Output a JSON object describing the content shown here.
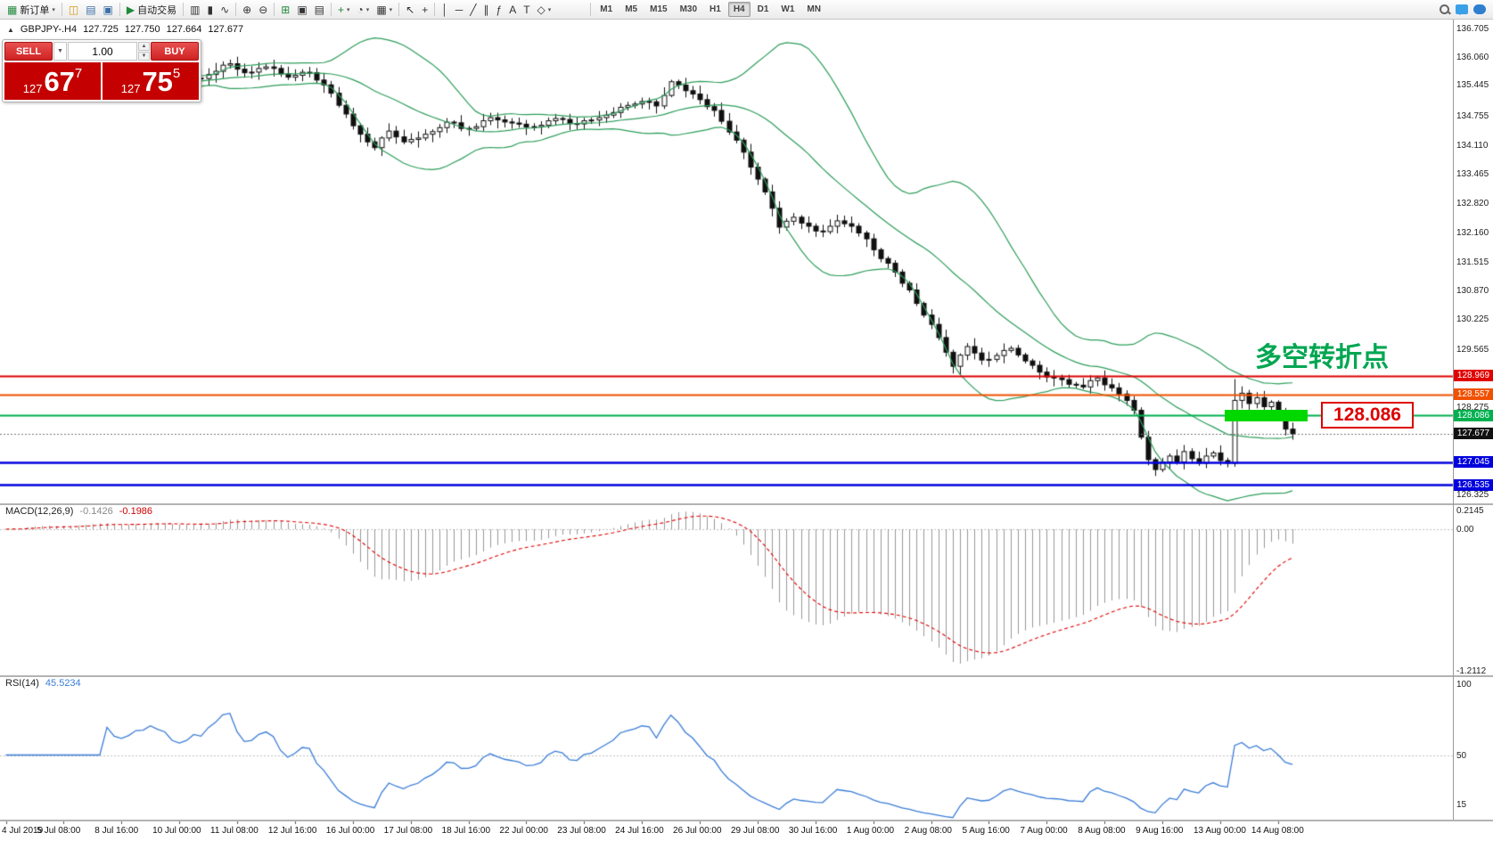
{
  "toolbar": {
    "caret_glyph": "▾",
    "groups": [
      [
        {
          "name": "new-order-button",
          "glyph": "▦",
          "color": "#1f8a3b",
          "label": "新订单",
          "caret": true
        }
      ],
      [
        {
          "name": "market-watch-icon",
          "glyph": "◫",
          "color": "#d89a16"
        },
        {
          "name": "data-window-icon",
          "glyph": "▤",
          "color": "#3a6ea5"
        },
        {
          "name": "navigator-icon",
          "glyph": "▣",
          "color": "#3a6ea5"
        }
      ],
      [
        {
          "name": "auto-trading-button",
          "glyph": "▶",
          "color": "#1f8a3b",
          "label": "自动交易"
        }
      ],
      [
        {
          "name": "bar-chart-button",
          "glyph": "▥"
        },
        {
          "name": "candlestick-chart-button",
          "glyph": "▮"
        },
        {
          "name": "line-chart-button",
          "glyph": "∿"
        }
      ],
      [
        {
          "name": "zoom-in-button",
          "glyph": "⊕"
        },
        {
          "name": "zoom-out-button",
          "glyph": "⊖"
        }
      ],
      [
        {
          "name": "tile-windows-button",
          "glyph": "⊞",
          "color": "#1f8a3b"
        },
        {
          "name": "cascade-windows-button",
          "glyph": "▣"
        },
        {
          "name": "arrange-windows-button",
          "glyph": "▤"
        }
      ],
      [
        {
          "name": "indicators-button",
          "glyph": "+",
          "color": "#1f8a3b",
          "caret": true
        },
        {
          "name": "periods-button",
          "glyph": "◔",
          "caret": true
        },
        {
          "name": "templates-button",
          "glyph": "▦",
          "caret": true
        }
      ],
      [
        {
          "name": "cursor-button",
          "glyph": "↖"
        },
        {
          "name": "crosshair-button",
          "glyph": "+"
        }
      ],
      [
        {
          "name": "vertical-line-button",
          "glyph": "│"
        },
        {
          "name": "horizontal-line-button",
          "glyph": "─"
        },
        {
          "name": "trendline-button",
          "glyph": "╱"
        },
        {
          "name": "channel-button",
          "glyph": "∥"
        },
        {
          "name": "fibonacci-button",
          "glyph": "ƒ"
        },
        {
          "name": "text-button",
          "glyph": "A"
        },
        {
          "name": "label-button",
          "glyph": "T"
        },
        {
          "name": "shapes-button",
          "glyph": "◇",
          "caret": true
        }
      ]
    ],
    "timeframes": [
      "M1",
      "M5",
      "M15",
      "M30",
      "H1",
      "H4",
      "D1",
      "W1",
      "MN"
    ],
    "active_timeframe": "H4",
    "right_icons": [
      {
        "name": "search-icon",
        "css": "search"
      },
      {
        "name": "chat-icon",
        "css": "chat"
      },
      {
        "name": "community-icon",
        "css": "chat2"
      }
    ]
  },
  "chart_header": {
    "symbol_icon": "▲",
    "symbol_period": "GBPJPY-.H4",
    "open": "127.725",
    "high": "127.750",
    "low": "127.664",
    "close": "127.677"
  },
  "trade_panel": {
    "sell_label": "SELL",
    "buy_label": "BUY",
    "volume": "1.00",
    "caret_down": "▼",
    "spinner_up": "▲",
    "spinner_down": "▼",
    "sell_price": {
      "prefix": "127",
      "big": "67",
      "sup": "7"
    },
    "buy_price": {
      "prefix": "127",
      "big": "75",
      "sup": "5"
    }
  },
  "annotation": {
    "text": "多空转折点",
    "color": "#00a651"
  },
  "callout": {
    "text": "128.086",
    "color": "#dd0000"
  },
  "highlight_bar_color": "#00d800",
  "chart_data": {
    "type": "candlestick",
    "symbol": "GBPJPY-",
    "timeframe": "H4",
    "price_axis": {
      "max": 136.705,
      "min": 126.325,
      "labels": [
        "136.705",
        "136.060",
        "135.445",
        "134.755",
        "134.110",
        "133.465",
        "132.820",
        "132.160",
        "131.515",
        "130.870",
        "130.225",
        "129.565",
        "128.275",
        "126.325"
      ]
    },
    "badges": [
      {
        "text": "128.969",
        "color": "#e00000"
      },
      {
        "text": "128.557",
        "color": "#f05000"
      },
      {
        "text": "128.086",
        "color": "#00b050"
      },
      {
        "text": "127.677",
        "color": "#111111"
      },
      {
        "text": "127.045",
        "color": "#0000dd"
      },
      {
        "text": "126.535",
        "color": "#0000dd"
      }
    ],
    "horizontal_lines": [
      {
        "price": 128.969,
        "color": "#e00000",
        "width": 2
      },
      {
        "price": 128.557,
        "color": "#f05000",
        "width": 2
      },
      {
        "price": 128.086,
        "color": "#00b050",
        "width": 2
      },
      {
        "price": 127.045,
        "color": "#0000dd",
        "width": 2.5
      },
      {
        "price": 126.535,
        "color": "#0000dd",
        "width": 2.5
      }
    ],
    "current_price": 127.677,
    "candles_per_gridline": 8,
    "time_labels": [
      "4 Jul 2019",
      "5 Jul 08:00",
      "8 Jul 16:00",
      "10 Jul 00:00",
      "11 Jul 08:00",
      "12 Jul 16:00",
      "16 Jul 00:00",
      "17 Jul 08:00",
      "18 Jul 16:00",
      "22 Jul 00:00",
      "23 Jul 08:00",
      "24 Jul 16:00",
      "26 Jul 00:00",
      "29 Jul 08:00",
      "30 Jul 16:00",
      "1 Aug 00:00",
      "2 Aug 08:00",
      "5 Aug 16:00",
      "7 Aug 00:00",
      "8 Aug 08:00",
      "9 Aug 16:00",
      "13 Aug 00:00",
      "14 Aug 08:00"
    ],
    "close_anchors": [
      [
        0,
        135.3
      ],
      [
        4,
        135.48
      ],
      [
        8,
        135.38
      ],
      [
        12,
        135.55
      ],
      [
        16,
        135.47
      ],
      [
        20,
        135.62
      ],
      [
        24,
        135.52
      ],
      [
        28,
        135.68
      ],
      [
        31,
        135.92
      ],
      [
        33,
        135.72
      ],
      [
        36,
        135.85
      ],
      [
        39,
        135.62
      ],
      [
        42,
        135.72
      ],
      [
        44,
        135.45
      ],
      [
        47,
        134.8
      ],
      [
        49,
        134.35
      ],
      [
        51,
        134.05
      ],
      [
        53,
        134.42
      ],
      [
        55,
        134.18
      ],
      [
        58,
        134.35
      ],
      [
        61,
        134.62
      ],
      [
        64,
        134.48
      ],
      [
        67,
        134.72
      ],
      [
        70,
        134.6
      ],
      [
        73,
        134.52
      ],
      [
        76,
        134.7
      ],
      [
        79,
        134.58
      ],
      [
        82,
        134.72
      ],
      [
        85,
        134.95
      ],
      [
        88,
        135.08
      ],
      [
        90,
        134.98
      ],
      [
        92,
        135.52
      ],
      [
        94,
        135.32
      ],
      [
        96,
        135.12
      ],
      [
        98,
        134.88
      ],
      [
        100,
        134.4
      ],
      [
        102,
        133.95
      ],
      [
        104,
        133.35
      ],
      [
        106,
        132.7
      ],
      [
        107,
        132.28
      ],
      [
        109,
        132.5
      ],
      [
        111,
        132.3
      ],
      [
        113,
        132.18
      ],
      [
        115,
        132.42
      ],
      [
        117,
        132.3
      ],
      [
        119,
        132.02
      ],
      [
        121,
        131.58
      ],
      [
        123,
        131.28
      ],
      [
        125,
        130.88
      ],
      [
        127,
        130.32
      ],
      [
        129,
        129.82
      ],
      [
        131,
        129.18
      ],
      [
        133,
        129.62
      ],
      [
        135,
        129.32
      ],
      [
        137,
        129.42
      ],
      [
        139,
        129.58
      ],
      [
        141,
        129.3
      ],
      [
        143,
        129.05
      ],
      [
        145,
        128.92
      ],
      [
        147,
        128.78
      ],
      [
        149,
        128.72
      ],
      [
        151,
        128.92
      ],
      [
        153,
        128.7
      ],
      [
        155,
        128.42
      ],
      [
        156,
        128.2
      ],
      [
        157,
        127.6
      ],
      [
        158,
        127.1
      ],
      [
        159,
        126.88
      ],
      [
        160,
        127.05
      ],
      [
        161,
        127.18
      ],
      [
        162,
        127.05
      ],
      [
        163,
        127.28
      ],
      [
        164,
        127.12
      ],
      [
        165,
        127.02
      ],
      [
        166,
        127.18
      ],
      [
        167,
        127.25
      ],
      [
        168,
        127.08
      ],
      [
        169,
        127.02
      ],
      [
        170,
        128.42
      ],
      [
        171,
        128.58
      ],
      [
        172,
        128.35
      ],
      [
        173,
        128.48
      ],
      [
        174,
        128.28
      ],
      [
        175,
        128.38
      ],
      [
        176,
        128.12
      ],
      [
        177,
        127.78
      ],
      [
        178,
        127.677
      ]
    ],
    "bollinger": {
      "period": 20,
      "deviation": 2,
      "color": "#2e9e5b"
    },
    "macd": {
      "label": "MACD(12,26,9)",
      "value_main": "-0.1426",
      "value_signal": "-0.1986",
      "axis_labels": [
        "0.2145",
        "0.00",
        "-1.2112"
      ],
      "histogram_color": "#999999",
      "signal_color": "#e00000"
    },
    "rsi": {
      "label": "RSI(14)",
      "value": "45.5234",
      "axis_labels": [
        "100",
        "50",
        "15"
      ],
      "line_color": "#3b7dd8",
      "level": 50
    }
  }
}
